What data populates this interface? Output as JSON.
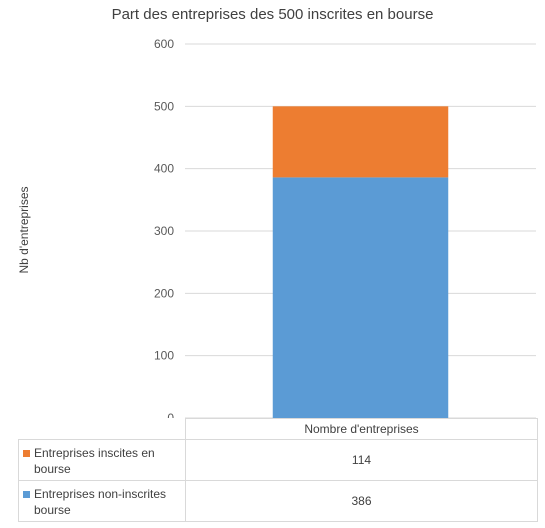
{
  "chart_data": {
    "type": "bar",
    "stacked": true,
    "title": "Part des entreprises des 500 inscrites en bourse",
    "xlabel": "",
    "ylabel": "Nb d'entreprises",
    "ylim": [
      0,
      600
    ],
    "yticks": [
      0,
      100,
      200,
      300,
      400,
      500,
      600
    ],
    "grid": true,
    "categories": [
      "Nombre d'entreprises"
    ],
    "series": [
      {
        "name": "Entreprises non-inscrites bourse",
        "values": [
          386
        ],
        "color": "#5b9bd5"
      },
      {
        "name": "Entreprises inscites en bourse",
        "values": [
          114
        ],
        "color": "#ed7d31"
      }
    ],
    "legend": "data-table",
    "table": {
      "rows": [
        {
          "label": "Entreprises inscites en bourse",
          "value": "114",
          "color": "#ed7d31"
        },
        {
          "label": "Entreprises non-inscrites bourse",
          "value": "386",
          "color": "#5b9bd5"
        }
      ]
    }
  }
}
